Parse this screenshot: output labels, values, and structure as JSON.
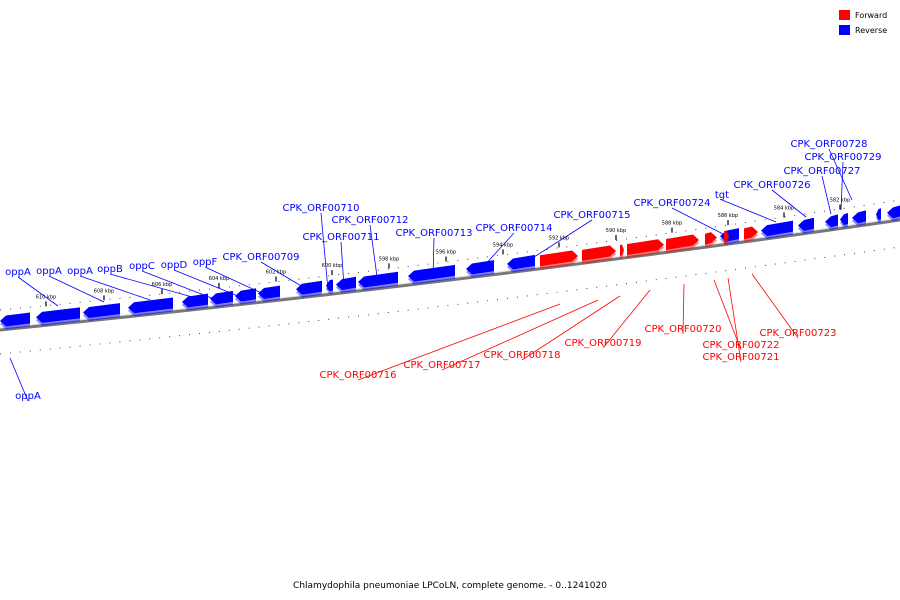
{
  "caption": "Chlamydophila pneumoniae LPCoLN, complete genome. - 0..1241020",
  "legend": [
    {
      "label": "Forward",
      "color": "#ff0000"
    },
    {
      "label": "Reverse",
      "color": "#0000ff"
    }
  ],
  "colors": {
    "forward": "#ff0000",
    "reverse": "#0000ff",
    "backbone": "#777777"
  },
  "kbp_ticks": [
    "610 kbp",
    "608 kbp",
    "606 kbp",
    "604 kbp",
    "602 kbp",
    "600 kbp",
    "598 kbp",
    "596 kbp",
    "594 kbp",
    "592 kbp",
    "590 kbp",
    "588 kbp",
    "586 kbp",
    "584 kbp",
    "582 kbp"
  ],
  "reverse_genes": [
    "oppA",
    "oppA",
    "oppA",
    "oppB",
    "oppC",
    "oppD",
    "oppF",
    "CPK_ORF00709",
    "CPK_ORF00710",
    "CPK_ORF00711",
    "CPK_ORF00712",
    "CPK_ORF00713",
    "CPK_ORF00714",
    "CPK_ORF00715",
    "CPK_ORF00724",
    "tgt",
    "CPK_ORF00726",
    "CPK_ORF00727",
    "CPK_ORF00729",
    "CPK_ORF00728",
    "oppA"
  ],
  "forward_genes": [
    "CPK_ORF00716",
    "CPK_ORF00717",
    "CPK_ORF00718",
    "CPK_ORF00719",
    "CPK_ORF00720",
    "CPK_ORF00722",
    "CPK_ORF00721",
    "CPK_ORF00723"
  ]
}
